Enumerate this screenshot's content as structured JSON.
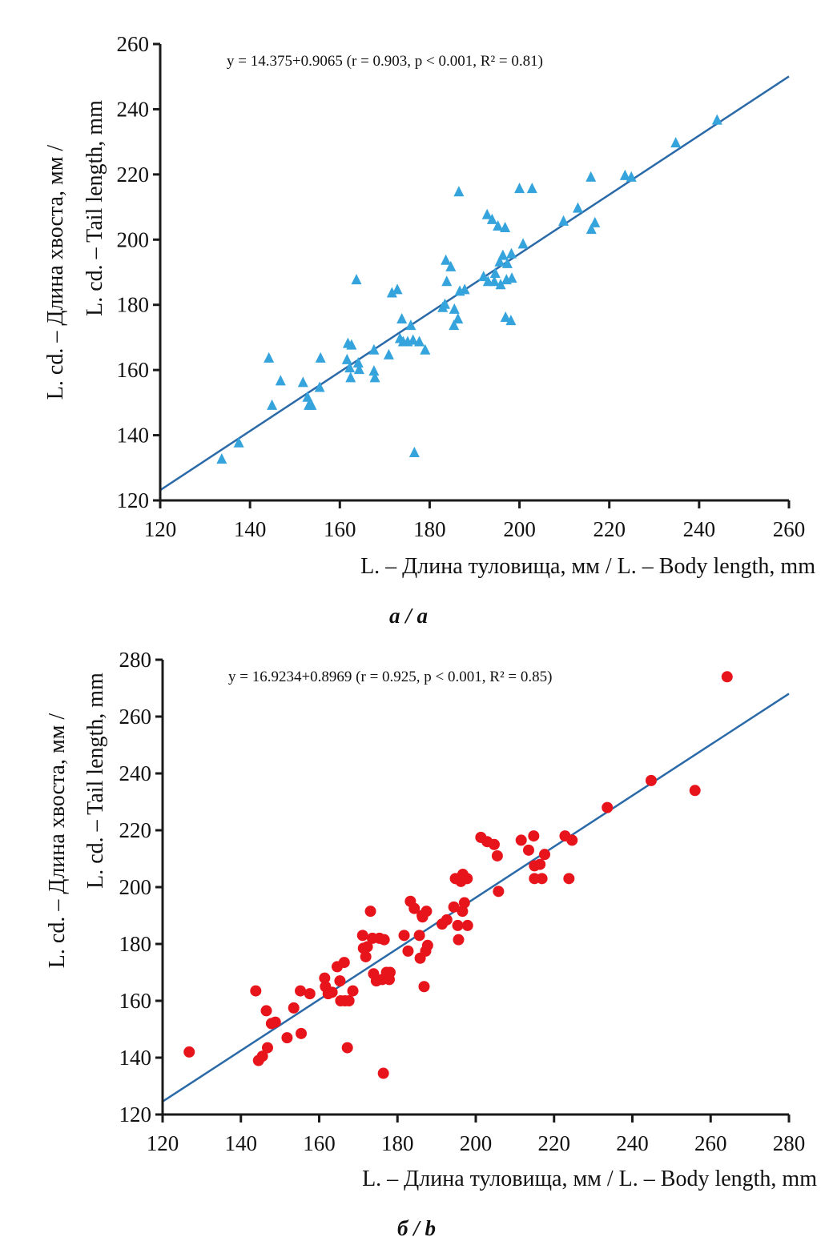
{
  "chart_data": [
    {
      "type": "scatter",
      "panel_label": "a / a",
      "equation": "y = 14.375+0.9065 (r = 0.903, p < 0.001, R² = 0.81)",
      "xlabel": "L. – Длина туловища, мм / L. – Body length, mm",
      "ylabel_line1": "L. cd. – Длина хвоста, мм /",
      "ylabel_line2": "L. cd. – Tail length, mm",
      "xlim": [
        120,
        260
      ],
      "ylim": [
        120,
        260
      ],
      "xticks": [
        120,
        140,
        160,
        180,
        200,
        220,
        240,
        260
      ],
      "yticks": [
        120,
        140,
        160,
        180,
        200,
        220,
        240,
        260
      ],
      "marker": "triangle",
      "marker_color": "#35a3dc",
      "line_color": "#2b6aa8",
      "regression": {
        "intercept": 14.375,
        "slope": 0.9065,
        "x_range": [
          120,
          260
        ]
      },
      "grid": false,
      "points": [
        [
          133.7,
          132.5
        ],
        [
          137.5,
          137.5
        ],
        [
          144.2,
          163.5
        ],
        [
          144.9,
          149
        ],
        [
          146.8,
          156.5
        ],
        [
          151.8,
          156
        ],
        [
          152.8,
          151.5
        ],
        [
          153.1,
          149
        ],
        [
          153.7,
          149
        ],
        [
          155.5,
          154.5
        ],
        [
          155.7,
          163.5
        ],
        [
          161.6,
          163
        ],
        [
          161.8,
          168
        ],
        [
          162.2,
          160.5
        ],
        [
          162.4,
          157.5
        ],
        [
          162.6,
          167.5
        ],
        [
          163.7,
          187.5
        ],
        [
          164.1,
          162
        ],
        [
          164.3,
          160
        ],
        [
          167.6,
          166
        ],
        [
          167.6,
          159.5
        ],
        [
          167.8,
          157.5
        ],
        [
          170.9,
          164.5
        ],
        [
          171.6,
          183.5
        ],
        [
          172.8,
          184.5
        ],
        [
          173.4,
          169.5
        ],
        [
          173.8,
          175.5
        ],
        [
          174.1,
          168.5
        ],
        [
          175.1,
          168.5
        ],
        [
          175.8,
          173.5
        ],
        [
          176.3,
          169
        ],
        [
          176.6,
          134.5
        ],
        [
          177.7,
          168.5
        ],
        [
          179,
          166
        ],
        [
          182.9,
          179
        ],
        [
          183.4,
          180
        ],
        [
          183.6,
          193.5
        ],
        [
          183.8,
          187
        ],
        [
          184.7,
          191.5
        ],
        [
          185.4,
          173.5
        ],
        [
          185.5,
          178.5
        ],
        [
          186.3,
          175.5
        ],
        [
          186.5,
          214.5
        ],
        [
          186.7,
          184
        ],
        [
          187.8,
          184.5
        ],
        [
          192,
          188.5
        ],
        [
          192.8,
          207.5
        ],
        [
          193,
          187
        ],
        [
          193.9,
          206
        ],
        [
          194.4,
          187
        ],
        [
          194.6,
          189.5
        ],
        [
          195.2,
          204
        ],
        [
          195.6,
          193
        ],
        [
          195.8,
          186
        ],
        [
          196.3,
          195
        ],
        [
          196.8,
          203.5
        ],
        [
          196.9,
          176
        ],
        [
          197.1,
          187.5
        ],
        [
          197.3,
          192.5
        ],
        [
          198.1,
          175
        ],
        [
          198.2,
          195.5
        ],
        [
          198.3,
          188
        ],
        [
          200,
          215.5
        ],
        [
          200.8,
          198.5
        ],
        [
          202.8,
          215.5
        ],
        [
          209.8,
          205.5
        ],
        [
          213,
          209.5
        ],
        [
          215.9,
          219
        ],
        [
          216,
          203
        ],
        [
          216.8,
          205
        ],
        [
          223.5,
          219.5
        ],
        [
          224.9,
          219
        ],
        [
          234.8,
          229.5
        ],
        [
          244,
          236.5
        ]
      ]
    },
    {
      "type": "scatter",
      "panel_label": "б / b",
      "equation": "y = 16.9234+0.8969 (r = 0.925, p < 0.001, R² = 0.85)",
      "xlabel": "L. – Длина туловища, мм / L. – Body length, mm",
      "ylabel_line1": "L. cd. – Длина хвоста, мм /",
      "ylabel_line2": "L. cd. – Tail length, mm",
      "xlim": [
        120,
        280
      ],
      "ylim": [
        120,
        280
      ],
      "xticks": [
        120,
        140,
        160,
        180,
        200,
        220,
        240,
        260,
        280
      ],
      "yticks": [
        120,
        140,
        160,
        180,
        200,
        220,
        240,
        260,
        280
      ],
      "marker": "circle",
      "marker_color": "#e8141c",
      "line_color": "#2b6aa8",
      "regression": {
        "intercept": 16.9234,
        "slope": 0.8969,
        "x_range": [
          120,
          280
        ]
      },
      "grid": false,
      "points": [
        [
          126.8,
          142
        ],
        [
          143.8,
          163.5
        ],
        [
          144.5,
          139
        ],
        [
          145.5,
          140.5
        ],
        [
          146.5,
          156.5
        ],
        [
          146.8,
          143.5
        ],
        [
          147.8,
          152
        ],
        [
          148.8,
          152.5
        ],
        [
          151.8,
          147
        ],
        [
          153.5,
          157.5
        ],
        [
          155.2,
          163.5
        ],
        [
          155.4,
          148.5
        ],
        [
          157.6,
          162.5
        ],
        [
          161.4,
          168
        ],
        [
          161.6,
          165
        ],
        [
          162.3,
          162.5
        ],
        [
          163.3,
          163
        ],
        [
          164.6,
          172
        ],
        [
          165.3,
          167
        ],
        [
          165.5,
          160
        ],
        [
          166.4,
          173.5
        ],
        [
          166.6,
          160
        ],
        [
          167.2,
          143.5
        ],
        [
          167.6,
          160
        ],
        [
          168.6,
          163.5
        ],
        [
          171.1,
          183
        ],
        [
          171.3,
          178.5
        ],
        [
          171.9,
          175.5
        ],
        [
          172.3,
          179
        ],
        [
          173.1,
          191.5
        ],
        [
          173.6,
          182
        ],
        [
          173.9,
          169.5
        ],
        [
          174.6,
          167
        ],
        [
          175.4,
          182
        ],
        [
          176.1,
          167.5
        ],
        [
          176.4,
          134.5
        ],
        [
          176.6,
          181.5
        ],
        [
          177.2,
          170
        ],
        [
          177.9,
          167.5
        ],
        [
          178.1,
          170
        ],
        [
          181.7,
          183
        ],
        [
          182.7,
          177.5
        ],
        [
          183.3,
          195
        ],
        [
          184.3,
          192.5
        ],
        [
          185.6,
          183
        ],
        [
          185.8,
          175
        ],
        [
          186.3,
          190
        ],
        [
          186.4,
          189.5
        ],
        [
          186.8,
          165
        ],
        [
          187.2,
          177.5
        ],
        [
          187.4,
          191.5
        ],
        [
          187.7,
          179.5
        ],
        [
          191.4,
          187
        ],
        [
          192.6,
          188.5
        ],
        [
          194.4,
          193
        ],
        [
          194.8,
          203
        ],
        [
          195.4,
          186.5
        ],
        [
          195.6,
          181.5
        ],
        [
          196.2,
          202
        ],
        [
          196.6,
          191.5
        ],
        [
          196.7,
          204.5
        ],
        [
          197.1,
          194.5
        ],
        [
          197.8,
          203
        ],
        [
          197.9,
          186.5
        ],
        [
          201.3,
          217.5
        ],
        [
          202.9,
          216
        ],
        [
          204.7,
          215
        ],
        [
          205.5,
          211
        ],
        [
          205.8,
          198.5
        ],
        [
          211.6,
          216.5
        ],
        [
          213.5,
          213
        ],
        [
          214.8,
          218
        ],
        [
          215,
          203
        ],
        [
          215,
          207.5
        ],
        [
          216.4,
          208
        ],
        [
          216.9,
          203
        ],
        [
          217.6,
          211.5
        ],
        [
          222.8,
          218
        ],
        [
          223.8,
          203
        ],
        [
          224.6,
          216.5
        ],
        [
          233.6,
          228
        ],
        [
          244.8,
          237.5
        ],
        [
          256,
          234
        ],
        [
          264.2,
          274
        ]
      ]
    }
  ]
}
